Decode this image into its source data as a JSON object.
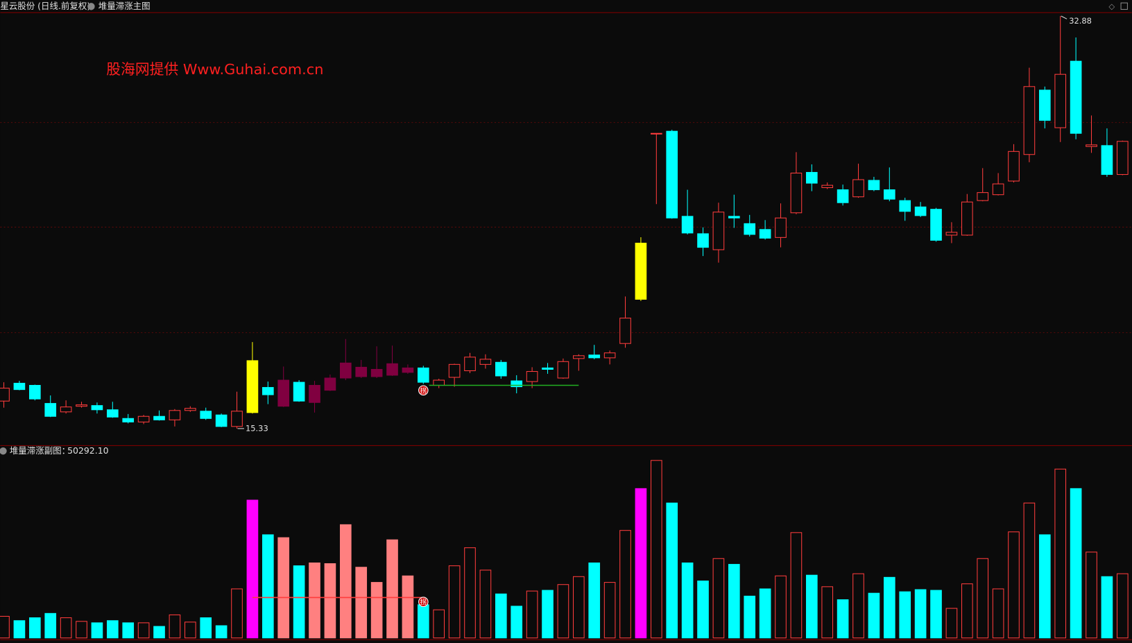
{
  "header": {
    "security": "星云股份 (日线.前复权)"
  },
  "chart_data": [
    {
      "type": "candlestick",
      "title": "堆量滞涨主图",
      "annotation": "股海网提供  Www.Guhai.com.cn",
      "marker_label": "拐",
      "ylim": [
        14.62,
        33.01
      ],
      "grid_lines": [
        28.35,
        23.9,
        19.41
      ],
      "up_color": "#ff3c3c",
      "reference_line": {
        "value": 17.17,
        "color": "#22b022"
      },
      "open": [
        16.5,
        17.26,
        17.17,
        16.4,
        16.04,
        16.28,
        16.31,
        16.13,
        15.76,
        15.61,
        15.85,
        15.7,
        16.1,
        16.07,
        15.91,
        15.42,
        16.01,
        17.08,
        16.28,
        17.3,
        16.44,
        16.96,
        17.48,
        17.54,
        17.54,
        17.6,
        17.72,
        17.91,
        17.17,
        17.51,
        17.79,
        18.06,
        18.15,
        17.36,
        17.33,
        17.91,
        17.48,
        18.31,
        18.46,
        18.34,
        18.95,
        20.83,
        27.86,
        27.98,
        24.36,
        23.62,
        22.94,
        24.36,
        24.05,
        23.8,
        23.46,
        24.51,
        26.23,
        25.58,
        25.49,
        25.19,
        25.89,
        25.49,
        25.03,
        24.76,
        24.66,
        23.56,
        23.56,
        25.03,
        25.28,
        25.86,
        26.99,
        29.73,
        28.13,
        30.96,
        27.33,
        27.37,
        26.14
      ],
      "close": [
        17.05,
        16.99,
        16.59,
        15.85,
        16.25,
        16.34,
        16.13,
        15.82,
        15.61,
        15.85,
        15.7,
        16.1,
        16.19,
        15.76,
        15.42,
        16.07,
        18.22,
        16.77,
        17.39,
        16.5,
        17.17,
        17.48,
        18.12,
        17.94,
        17.85,
        18.09,
        17.91,
        17.3,
        17.39,
        18.06,
        18.37,
        18.28,
        17.57,
        17.11,
        17.76,
        17.85,
        18.18,
        18.43,
        18.34,
        18.55,
        20.03,
        23.22,
        27.89,
        24.29,
        23.65,
        23.04,
        24.54,
        24.29,
        23.59,
        23.43,
        24.29,
        26.2,
        25.77,
        25.68,
        24.94,
        25.92,
        25.49,
        25.09,
        24.57,
        24.39,
        23.34,
        23.68,
        24.97,
        25.37,
        25.74,
        27.12,
        29.88,
        28.44,
        30.4,
        27.89,
        27.4,
        26.14,
        27.55
      ],
      "high": [
        17.3,
        17.36,
        17.2,
        16.74,
        16.53,
        16.47,
        16.44,
        16.47,
        15.95,
        15.91,
        16.1,
        16.16,
        16.28,
        16.22,
        15.97,
        16.9,
        19.01,
        17.33,
        17.97,
        17.39,
        17.36,
        17.63,
        19.14,
        18.25,
        18.83,
        18.86,
        18.06,
        18.0,
        17.45,
        18.09,
        18.55,
        18.49,
        18.25,
        17.6,
        17.94,
        18.12,
        18.31,
        18.49,
        18.89,
        18.65,
        20.95,
        23.47,
        27.89,
        28.04,
        25.49,
        23.89,
        24.94,
        25.28,
        24.42,
        24.2,
        24.91,
        27.09,
        26.57,
        25.8,
        25.71,
        26.6,
        26.04,
        26.44,
        25.15,
        24.97,
        24.72,
        24.11,
        25.31,
        26.41,
        26.2,
        27.43,
        30.68,
        29.88,
        32.88,
        31.97,
        28.65,
        28.1,
        27.58
      ],
      "low": [
        16.22,
        16.96,
        16.53,
        15.82,
        15.97,
        16.22,
        15.97,
        15.79,
        15.55,
        15.52,
        15.67,
        15.42,
        16.04,
        15.7,
        15.39,
        15.33,
        15.97,
        16.37,
        16.25,
        16.47,
        16.01,
        16.93,
        17.39,
        17.48,
        17.48,
        17.57,
        17.66,
        17.23,
        17.05,
        17.11,
        17.69,
        17.88,
        17.45,
        16.83,
        17.05,
        17.66,
        17.45,
        17.79,
        18.28,
        18.06,
        18.77,
        20.76,
        24.88,
        24.26,
        23.59,
        22.67,
        22.39,
        23.87,
        23.5,
        23.37,
        23.04,
        24.45,
        25.43,
        25.52,
        24.82,
        25.15,
        25.43,
        25.0,
        24.17,
        24.33,
        23.28,
        23.22,
        23.53,
        25.0,
        25.25,
        25.8,
        26.66,
        28.1,
        27.52,
        27.64,
        27.06,
        26.04,
        26.11
      ],
      "colors": [
        "#ff3c3c",
        "#00ffff",
        "#00ffff",
        "#00ffff",
        "#ff3c3c",
        "#ff3c3c",
        "#00ffff",
        "#00ffff",
        "#00ffff",
        "#ff3c3c",
        "#00ffff",
        "#ff3c3c",
        "#ff3c3c",
        "#00ffff",
        "#00ffff",
        "#ff3c3c",
        "#ffff00",
        "#00ffff",
        "#800040",
        "#00ffff",
        "#800040",
        "#800040",
        "#800040",
        "#800040",
        "#800040",
        "#800040",
        "#800040",
        "#00ffff",
        "#ff3c3c",
        "#ff3c3c",
        "#ff3c3c",
        "#ff3c3c",
        "#00ffff",
        "#00ffff",
        "#ff3c3c",
        "#00ffff",
        "#ff3c3c",
        "#ff3c3c",
        "#00ffff",
        "#ff3c3c",
        "#ff3c3c",
        "#ffff00",
        "#ff3c3c",
        "#00ffff",
        "#00ffff",
        "#00ffff",
        "#ff3c3c",
        "#00ffff",
        "#00ffff",
        "#00ffff",
        "#ff3c3c",
        "#ff3c3c",
        "#00ffff",
        "#ff3c3c",
        "#00ffff",
        "#ff3c3c",
        "#00ffff",
        "#00ffff",
        "#00ffff",
        "#00ffff",
        "#00ffff",
        "#ff3c3c",
        "#ff3c3c",
        "#ff3c3c",
        "#ff3c3c",
        "#ff3c3c",
        "#ff3c3c",
        "#00ffff",
        "#ff3c3c",
        "#00ffff",
        "#ff3c3c",
        "#00ffff",
        "#ff3c3c"
      ]
    },
    {
      "type": "bar",
      "title": "堆量滞涨副图：",
      "readout": {
        "value": 50292.1,
        "label": "50292.10"
      },
      "marker_label": "拐",
      "ylim": [
        0,
        149725
      ],
      "up_color": "#ff3c3c",
      "reference_line": {
        "value": 31640,
        "color": "#ff3c3c"
      },
      "values": [
        16950,
        13560,
        15820,
        19210,
        15820,
        12995,
        11865,
        13560,
        11865,
        11865,
        9040,
        18080,
        12430,
        15820,
        9605,
        38420,
        107915,
        80795,
        78535,
        56500,
        58760,
        58195,
        88705,
        55370,
        43505,
        76840,
        48590,
        25990,
        22035,
        56500,
        70625,
        53110,
        34465,
        24860,
        36725,
        37290,
        41810,
        48025,
        58760,
        43505,
        84185,
        116955,
        138990,
        105655,
        58760,
        44635,
        62150,
        57630,
        32770,
        38420,
        48590,
        82490,
        49155,
        40115,
        29945,
        50285,
        35030,
        47460,
        36160,
        37855,
        37290,
        23165,
        42375,
        62150,
        38420,
        83055,
        105655,
        80795,
        132210,
        116955,
        67235,
        48025,
        50292.1
      ],
      "colors": [
        "#ff3c3c",
        "#00ffff",
        "#00ffff",
        "#00ffff",
        "#ff3c3c",
        "#ff3c3c",
        "#00ffff",
        "#00ffff",
        "#00ffff",
        "#ff3c3c",
        "#00ffff",
        "#ff3c3c",
        "#ff3c3c",
        "#00ffff",
        "#00ffff",
        "#ff3c3c",
        "#ff00ff",
        "#00ffff",
        "#ff8080",
        "#00ffff",
        "#ff8080",
        "#ff8080",
        "#ff8080",
        "#ff8080",
        "#ff8080",
        "#ff8080",
        "#ff8080",
        "#00ffff",
        "#ff3c3c",
        "#ff3c3c",
        "#ff3c3c",
        "#ff3c3c",
        "#00ffff",
        "#00ffff",
        "#ff3c3c",
        "#00ffff",
        "#ff3c3c",
        "#ff3c3c",
        "#00ffff",
        "#ff3c3c",
        "#ff3c3c",
        "#ff00ff",
        "#ff3c3c",
        "#00ffff",
        "#00ffff",
        "#00ffff",
        "#ff3c3c",
        "#00ffff",
        "#00ffff",
        "#00ffff",
        "#ff3c3c",
        "#ff3c3c",
        "#00ffff",
        "#ff3c3c",
        "#00ffff",
        "#ff3c3c",
        "#00ffff",
        "#00ffff",
        "#00ffff",
        "#00ffff",
        "#00ffff",
        "#ff3c3c",
        "#ff3c3c",
        "#ff3c3c",
        "#ff3c3c",
        "#ff3c3c",
        "#ff3c3c",
        "#00ffff",
        "#ff3c3c",
        "#00ffff",
        "#ff3c3c",
        "#00ffff",
        "#ff3c3c"
      ]
    }
  ]
}
